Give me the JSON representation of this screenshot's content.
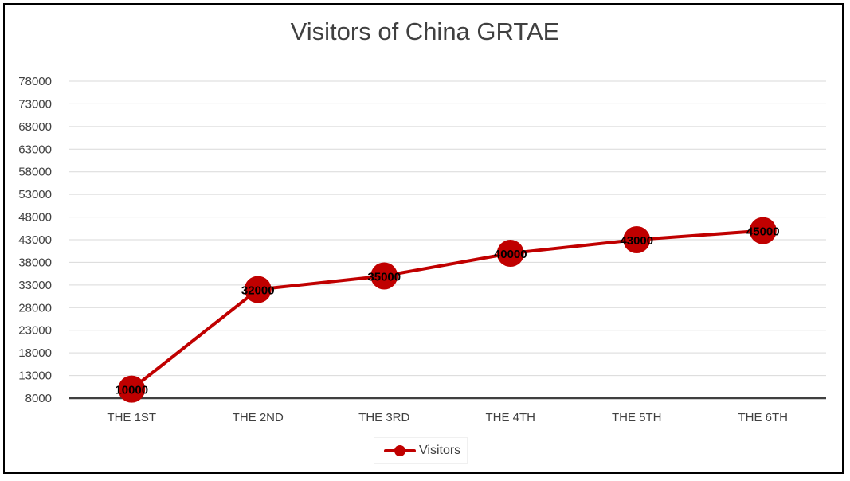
{
  "chart_data": {
    "type": "line",
    "title": "Visitors of China GRTAE",
    "xlabel": "",
    "ylabel": "",
    "categories": [
      "THE 1ST",
      "THE 2ND",
      "THE 3RD",
      "THE 4TH",
      "THE 5TH",
      "THE 6TH"
    ],
    "series": [
      {
        "name": "Visitors",
        "values": [
          10000,
          32000,
          35000,
          40000,
          43000,
          45000
        ],
        "color": "#C00000"
      }
    ],
    "y_ticks": [
      "8000",
      "13000",
      "18000",
      "23000",
      "28000",
      "33000",
      "38000",
      "43000",
      "48000",
      "53000",
      "58000",
      "63000",
      "68000",
      "73000",
      "78000"
    ],
    "data_labels": [
      "10000",
      "32000",
      "35000",
      "40000",
      "43000",
      "45000"
    ],
    "ylim": [
      8000,
      78000
    ],
    "grid": true,
    "legend": "bottom",
    "colors": {
      "series": "#C00000",
      "gridline": "#d9d9d9",
      "axis": "#404040",
      "text": "#404040"
    }
  }
}
